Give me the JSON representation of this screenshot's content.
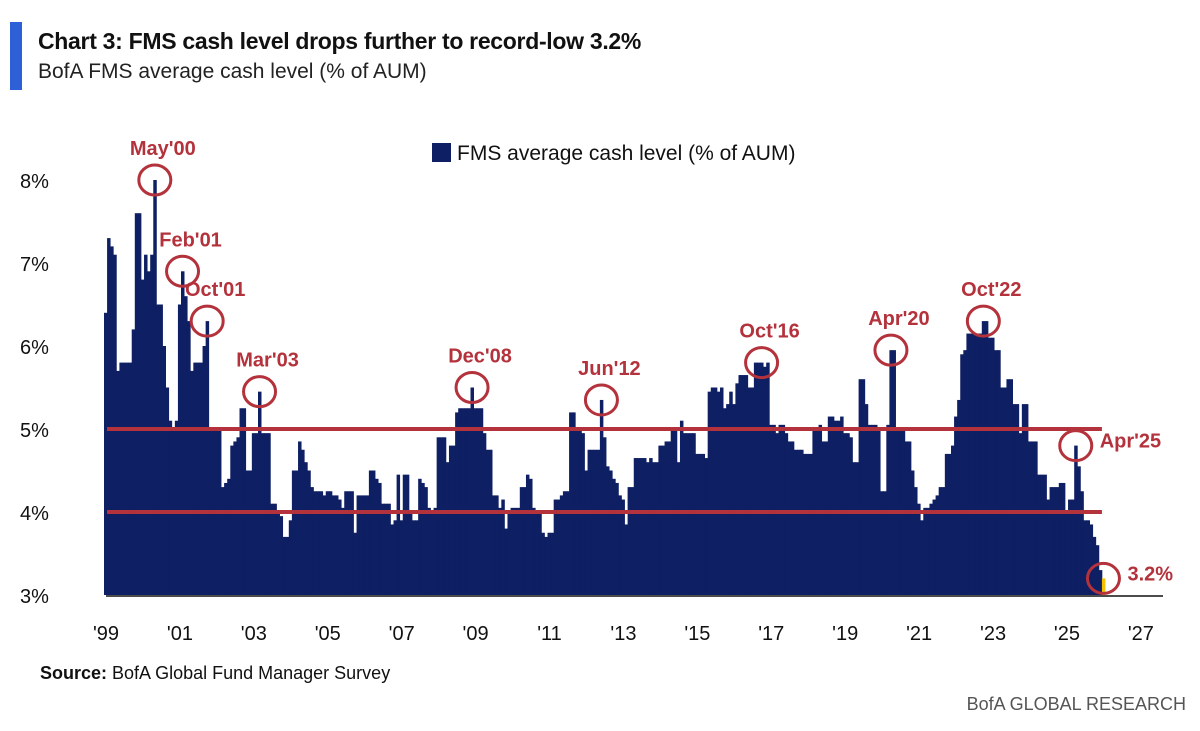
{
  "header": {
    "title": "Chart 3: FMS cash level drops further to record-low 3.2%",
    "subtitle": "BofA FMS average cash level (% of AUM)"
  },
  "footer": {
    "source_label": "Source:",
    "source_text": " BofA Global Fund Manager Survey",
    "brand": "BofA GLOBAL RESEARCH"
  },
  "colors": {
    "bars": "#0e1f63",
    "reference_lines": "#b3323b",
    "annotations": "#b3323b",
    "latest_point": "#f2c200",
    "accent": "#2d5fd6"
  },
  "chart_data": {
    "type": "bar",
    "title": "Chart 3: FMS cash level drops further to record-low 3.2%",
    "subtitle": "BofA FMS average cash level (% of AUM)",
    "frequency": "monthly",
    "start": "1999-01",
    "ylim": [
      3,
      8.3
    ],
    "y_ticks": [
      "3%",
      "4%",
      "5%",
      "6%",
      "7%",
      "8%"
    ],
    "y_tick_values": [
      3,
      4,
      5,
      6,
      7,
      8
    ],
    "x_ticks": [
      "'99",
      "'01",
      "'03",
      "'05",
      "'07",
      "'09",
      "'11",
      "'13",
      "'15",
      "'17",
      "'19",
      "'21",
      "'23",
      "'25",
      "'27"
    ],
    "x_tick_years": [
      1999,
      2001,
      2003,
      2005,
      2007,
      2009,
      2011,
      2013,
      2015,
      2017,
      2019,
      2021,
      2023,
      2025,
      2027
    ],
    "legend": {
      "label": "FMS average cash level (% of AUM)",
      "position": "top-center"
    },
    "grid": false,
    "reference_lines": [
      5,
      4
    ],
    "series": [
      {
        "name": "FMS average cash level (% of AUM)",
        "values": [
          6.4,
          7.3,
          7.2,
          7.1,
          5.7,
          5.8,
          5.8,
          5.8,
          5.8,
          6.2,
          7.6,
          7.6,
          6.8,
          7.1,
          6.9,
          7.1,
          8.0,
          6.5,
          6.5,
          6.0,
          5.5,
          5.1,
          5.0,
          5.1,
          6.5,
          6.9,
          6.6,
          6.3,
          5.7,
          5.8,
          5.8,
          5.8,
          6.0,
          6.3,
          5.0,
          5.0,
          5.0,
          5.0,
          4.3,
          4.35,
          4.4,
          4.8,
          4.85,
          4.9,
          5.25,
          5.25,
          4.5,
          4.5,
          4.95,
          4.95,
          5.45,
          4.95,
          4.95,
          4.95,
          4.1,
          4.1,
          4.0,
          3.95,
          3.7,
          3.7,
          3.9,
          4.5,
          4.5,
          4.85,
          4.75,
          4.6,
          4.5,
          4.3,
          4.25,
          4.25,
          4.25,
          4.2,
          4.25,
          4.25,
          4.2,
          4.2,
          4.15,
          4.05,
          4.25,
          4.25,
          4.25,
          3.75,
          4.2,
          4.2,
          4.2,
          4.2,
          4.5,
          4.5,
          4.4,
          4.35,
          4.1,
          4.1,
          4.1,
          3.85,
          3.9,
          4.45,
          3.9,
          4.45,
          4.45,
          4.0,
          3.9,
          3.9,
          4.4,
          4.35,
          4.3,
          4.05,
          4.0,
          4.05,
          4.9,
          4.9,
          4.9,
          4.6,
          4.8,
          4.8,
          5.2,
          5.25,
          5.25,
          5.25,
          5.25,
          5.5,
          5.25,
          5.25,
          5.25,
          4.95,
          4.75,
          4.75,
          4.2,
          4.2,
          4.05,
          4.15,
          3.8,
          4.0,
          4.05,
          4.05,
          4.05,
          4.3,
          4.3,
          4.45,
          4.4,
          4.05,
          4.0,
          4.0,
          3.75,
          3.7,
          3.75,
          3.75,
          4.15,
          4.15,
          4.2,
          4.25,
          4.25,
          5.2,
          5.2,
          5.0,
          5.0,
          4.95,
          4.5,
          4.75,
          4.75,
          4.75,
          4.75,
          5.35,
          4.9,
          4.55,
          4.5,
          4.4,
          4.35,
          4.2,
          4.15,
          3.85,
          4.3,
          4.3,
          4.65,
          4.65,
          4.65,
          4.65,
          4.6,
          4.65,
          4.6,
          4.6,
          4.8,
          4.8,
          4.85,
          4.85,
          5.0,
          5.0,
          4.6,
          5.1,
          4.95,
          4.95,
          4.95,
          4.95,
          4.7,
          4.7,
          4.7,
          4.65,
          5.45,
          5.5,
          5.5,
          5.45,
          5.5,
          5.25,
          5.3,
          5.45,
          5.3,
          5.55,
          5.65,
          5.65,
          5.65,
          5.5,
          5.5,
          5.8,
          5.8,
          5.8,
          5.75,
          5.8,
          5.05,
          5.05,
          4.95,
          5.05,
          5.05,
          4.95,
          4.85,
          4.85,
          4.75,
          4.75,
          4.75,
          4.7,
          4.7,
          4.7,
          5.0,
          5.0,
          5.05,
          4.85,
          4.85,
          5.15,
          5.15,
          5.1,
          5.1,
          5.15,
          4.95,
          4.95,
          4.9,
          4.6,
          4.6,
          5.6,
          5.6,
          5.3,
          5.05,
          5.05,
          5.05,
          5.0,
          4.25,
          4.25,
          5.05,
          5.95,
          5.95,
          5.0,
          5.0,
          5.0,
          4.85,
          4.85,
          4.5,
          4.3,
          4.1,
          3.9,
          4.05,
          4.05,
          4.1,
          4.15,
          4.2,
          4.3,
          4.3,
          4.7,
          4.7,
          4.8,
          5.15,
          5.35,
          5.9,
          5.95,
          6.15,
          6.15,
          6.15,
          6.15,
          6.15,
          6.3,
          6.3,
          6.1,
          6.1,
          5.95,
          5.95,
          5.5,
          5.5,
          5.6,
          5.6,
          5.3,
          5.3,
          4.95,
          5.3,
          5.3,
          4.85,
          4.85,
          4.85,
          4.45,
          4.45,
          4.45,
          4.15,
          4.3,
          4.3,
          4.3,
          4.35,
          4.35,
          4.0,
          4.15,
          4.15,
          4.8,
          4.55,
          4.25,
          3.9,
          3.9,
          3.85,
          3.7,
          3.6,
          3.3,
          3.2
        ]
      }
    ],
    "annotations": [
      {
        "label": "May'00",
        "date": "2000-05",
        "value": 8.0
      },
      {
        "label": "Feb'01",
        "date": "2001-02",
        "value": 6.9
      },
      {
        "label": "Oct'01",
        "date": "2001-10",
        "value": 6.3
      },
      {
        "label": "Mar'03",
        "date": "2003-03",
        "value": 5.45
      },
      {
        "label": "Dec'08",
        "date": "2008-12",
        "value": 5.5
      },
      {
        "label": "Jun'12",
        "date": "2012-06",
        "value": 5.35
      },
      {
        "label": "Oct'16",
        "date": "2016-10",
        "value": 5.8
      },
      {
        "label": "Apr'20",
        "date": "2020-04",
        "value": 5.95
      },
      {
        "label": "Oct'22",
        "date": "2022-10",
        "value": 6.3
      },
      {
        "label": "Apr'25",
        "date": "2025-04",
        "value": 4.8
      },
      {
        "label": "3.2%",
        "date": "2026-01",
        "value": 3.2
      }
    ]
  }
}
